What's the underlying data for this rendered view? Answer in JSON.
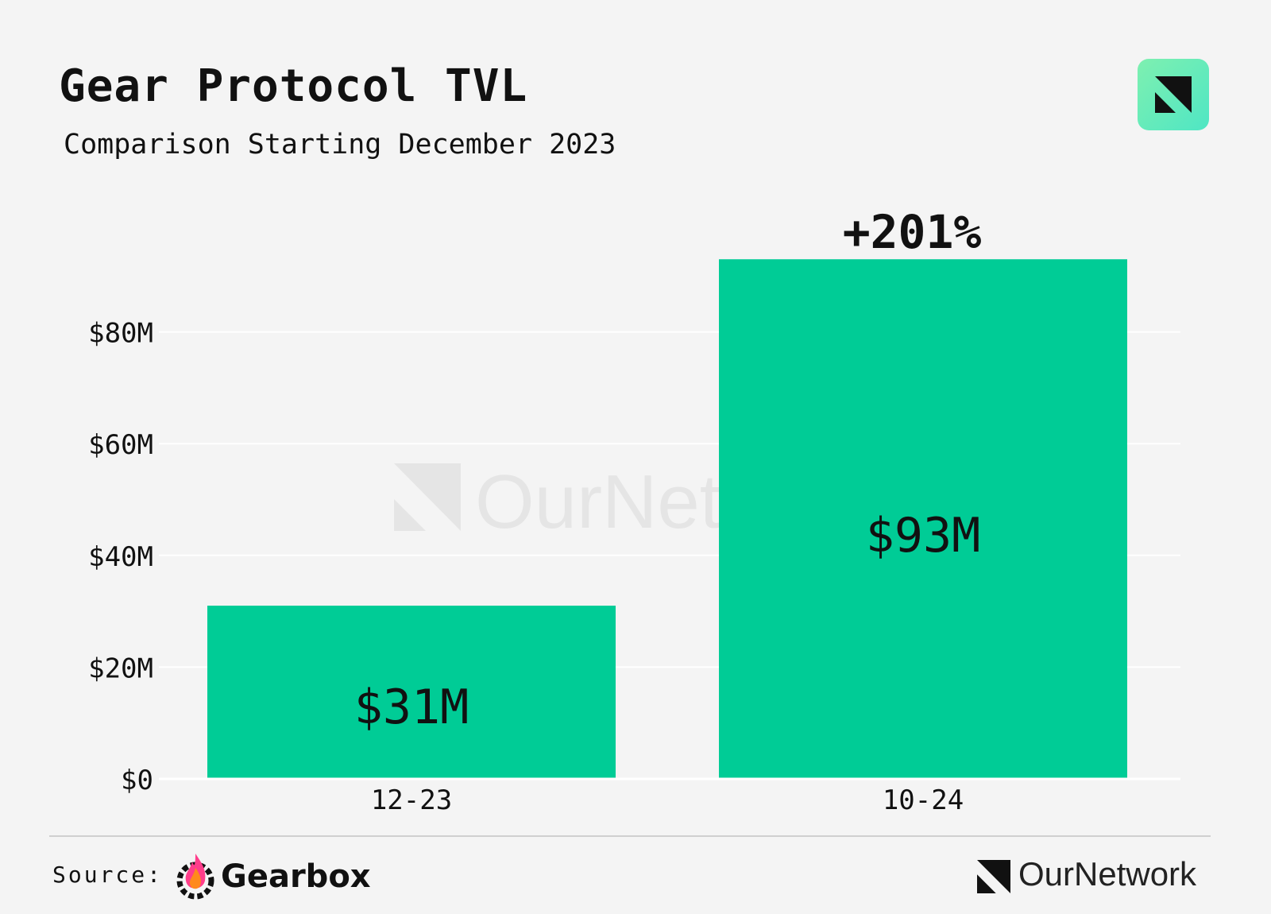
{
  "header": {
    "title": "Gear Protocol TVL",
    "subtitle": "Comparison Starting December 2023"
  },
  "chart_data": {
    "type": "bar",
    "categories": [
      "12-23",
      "10-24"
    ],
    "values": [
      31,
      93
    ],
    "value_labels": [
      "$31M",
      "$93M"
    ],
    "annotation": "+201%",
    "ylim": [
      0,
      100
    ],
    "yticks": [
      0,
      20,
      40,
      60,
      80
    ],
    "ytick_labels": [
      "$0",
      "$20M",
      "$40M",
      "$60M",
      "$80M"
    ],
    "grid": true,
    "bar_color": "#00cc96",
    "watermark": "OurNetwork"
  },
  "footer": {
    "source_label": "Source:",
    "source_name": "Gearbox",
    "brand": "OurNetwork"
  },
  "icons": {
    "badge": "ournetwork-logo-icon",
    "source": "gearbox-flame-icon"
  }
}
